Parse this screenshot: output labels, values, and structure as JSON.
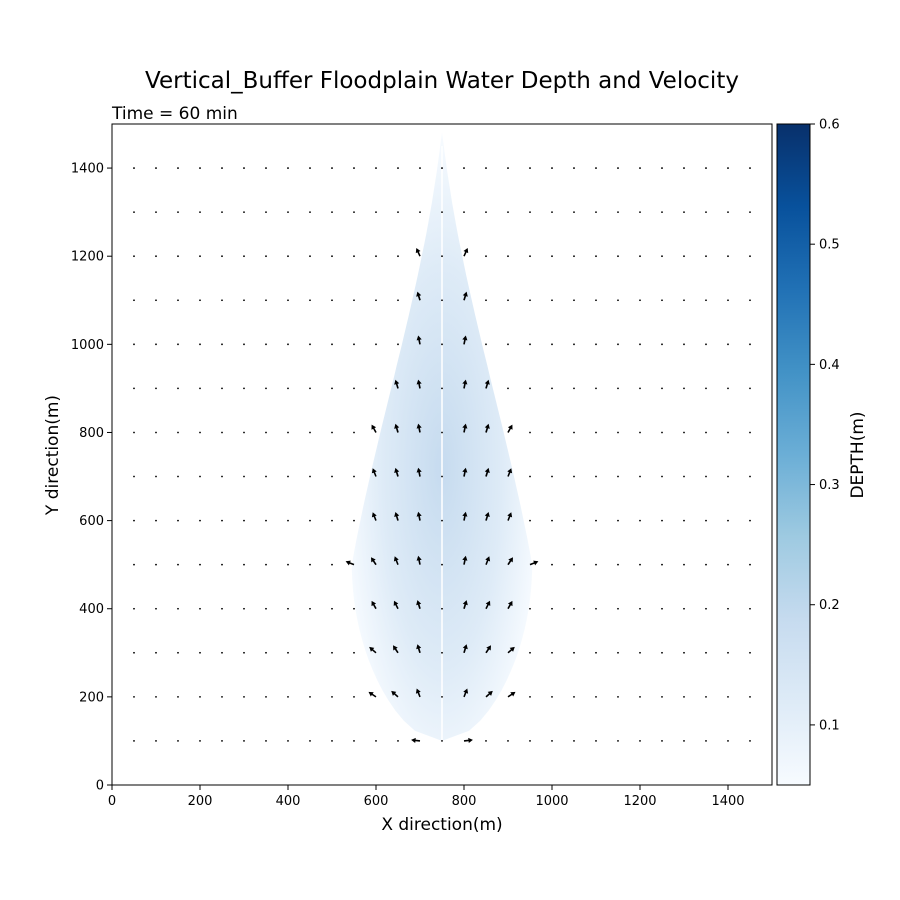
{
  "chart_data": {
    "type": "quiver",
    "title": "Vertical_Buffer Floodplain Water Depth and Velocity",
    "subtitle": "Time = 60 min",
    "xlabel": "X direction(m)",
    "ylabel": "Y direction(m)",
    "xlim": [
      0,
      1500
    ],
    "ylim": [
      0,
      1500
    ],
    "xticks": [
      0,
      200,
      400,
      600,
      800,
      1000,
      1200,
      1400
    ],
    "yticks": [
      0,
      200,
      400,
      600,
      800,
      1000,
      1200,
      1400
    ],
    "grid": false,
    "depth_field": {
      "source_x": 750,
      "source_y": 100,
      "tip_y": 1480,
      "max_half_width": 205,
      "widest_y": 500,
      "peak_depth": 0.2,
      "channel_x": 750
    },
    "quiver_grid": {
      "x_start": 50,
      "x_step": 50,
      "x_end": 1450,
      "y_start": 100,
      "y_step": 100,
      "y_end": 1400
    },
    "vectors": [
      {
        "x": 700,
        "y": 100,
        "u": -0.9,
        "v": 0.1
      },
      {
        "x": 800,
        "y": 100,
        "u": 0.9,
        "v": 0.1
      },
      {
        "x": 600,
        "y": 200,
        "u": -0.6,
        "v": 0.4
      },
      {
        "x": 650,
        "y": 200,
        "u": -0.8,
        "v": 0.7
      },
      {
        "x": 700,
        "y": 200,
        "u": -0.4,
        "v": 1.0
      },
      {
        "x": 800,
        "y": 200,
        "u": 0.4,
        "v": 1.0
      },
      {
        "x": 850,
        "y": 200,
        "u": 0.8,
        "v": 0.7
      },
      {
        "x": 900,
        "y": 200,
        "u": 0.6,
        "v": 0.4
      },
      {
        "x": 600,
        "y": 300,
        "u": -0.7,
        "v": 0.6
      },
      {
        "x": 650,
        "y": 300,
        "u": -0.6,
        "v": 0.9
      },
      {
        "x": 700,
        "y": 300,
        "u": -0.3,
        "v": 1.0
      },
      {
        "x": 800,
        "y": 300,
        "u": 0.3,
        "v": 1.0
      },
      {
        "x": 850,
        "y": 300,
        "u": 0.6,
        "v": 0.9
      },
      {
        "x": 900,
        "y": 300,
        "u": 0.7,
        "v": 0.6
      },
      {
        "x": 600,
        "y": 400,
        "u": -0.5,
        "v": 0.9
      },
      {
        "x": 650,
        "y": 400,
        "u": -0.5,
        "v": 1.0
      },
      {
        "x": 700,
        "y": 400,
        "u": -0.3,
        "v": 1.0
      },
      {
        "x": 800,
        "y": 400,
        "u": 0.3,
        "v": 1.0
      },
      {
        "x": 850,
        "y": 400,
        "u": 0.5,
        "v": 1.0
      },
      {
        "x": 900,
        "y": 400,
        "u": 0.5,
        "v": 0.9
      },
      {
        "x": 550,
        "y": 500,
        "u": -1.0,
        "v": 0.4
      },
      {
        "x": 600,
        "y": 500,
        "u": -0.6,
        "v": 0.9
      },
      {
        "x": 650,
        "y": 500,
        "u": -0.4,
        "v": 1.0
      },
      {
        "x": 700,
        "y": 500,
        "u": -0.2,
        "v": 1.0
      },
      {
        "x": 800,
        "y": 500,
        "u": 0.2,
        "v": 1.0
      },
      {
        "x": 850,
        "y": 500,
        "u": 0.4,
        "v": 1.0
      },
      {
        "x": 900,
        "y": 500,
        "u": 0.6,
        "v": 0.9
      },
      {
        "x": 950,
        "y": 500,
        "u": 1.0,
        "v": 0.4
      },
      {
        "x": 600,
        "y": 600,
        "u": -0.4,
        "v": 1.0
      },
      {
        "x": 650,
        "y": 600,
        "u": -0.3,
        "v": 1.0
      },
      {
        "x": 700,
        "y": 600,
        "u": -0.2,
        "v": 1.0
      },
      {
        "x": 800,
        "y": 600,
        "u": 0.2,
        "v": 1.0
      },
      {
        "x": 850,
        "y": 600,
        "u": 0.3,
        "v": 1.0
      },
      {
        "x": 900,
        "y": 600,
        "u": 0.4,
        "v": 1.0
      },
      {
        "x": 600,
        "y": 700,
        "u": -0.4,
        "v": 1.0
      },
      {
        "x": 650,
        "y": 700,
        "u": -0.3,
        "v": 1.0
      },
      {
        "x": 700,
        "y": 700,
        "u": -0.2,
        "v": 1.0
      },
      {
        "x": 800,
        "y": 700,
        "u": 0.2,
        "v": 1.0
      },
      {
        "x": 850,
        "y": 700,
        "u": 0.3,
        "v": 1.0
      },
      {
        "x": 900,
        "y": 700,
        "u": 0.4,
        "v": 1.0
      },
      {
        "x": 600,
        "y": 800,
        "u": -0.5,
        "v": 0.9
      },
      {
        "x": 650,
        "y": 800,
        "u": -0.3,
        "v": 1.0
      },
      {
        "x": 700,
        "y": 800,
        "u": -0.2,
        "v": 1.0
      },
      {
        "x": 800,
        "y": 800,
        "u": 0.2,
        "v": 1.0
      },
      {
        "x": 850,
        "y": 800,
        "u": 0.3,
        "v": 1.0
      },
      {
        "x": 900,
        "y": 800,
        "u": 0.5,
        "v": 0.9
      },
      {
        "x": 650,
        "y": 900,
        "u": -0.3,
        "v": 1.0
      },
      {
        "x": 700,
        "y": 900,
        "u": -0.2,
        "v": 1.0
      },
      {
        "x": 800,
        "y": 900,
        "u": 0.2,
        "v": 1.0
      },
      {
        "x": 850,
        "y": 900,
        "u": 0.3,
        "v": 1.0
      },
      {
        "x": 700,
        "y": 1000,
        "u": -0.2,
        "v": 1.0
      },
      {
        "x": 800,
        "y": 1000,
        "u": 0.2,
        "v": 1.0
      },
      {
        "x": 700,
        "y": 1100,
        "u": -0.3,
        "v": 1.0
      },
      {
        "x": 800,
        "y": 1100,
        "u": 0.3,
        "v": 1.0
      },
      {
        "x": 700,
        "y": 1200,
        "u": -0.4,
        "v": 0.9
      },
      {
        "x": 800,
        "y": 1200,
        "u": 0.4,
        "v": 0.9
      }
    ],
    "colorbar": {
      "label": "DEPTH(m)",
      "cmap": "Blues",
      "vmin": 0.05,
      "vmax": 0.6,
      "ticks": [
        "0.1",
        "0.2",
        "0.3",
        "0.4",
        "0.5",
        "0.6"
      ],
      "colors": [
        "#f7fbff",
        "#deebf7",
        "#c6dbef",
        "#9ecae1",
        "#6baed6",
        "#4292c6",
        "#2171b5",
        "#08519c",
        "#08306b"
      ]
    }
  }
}
